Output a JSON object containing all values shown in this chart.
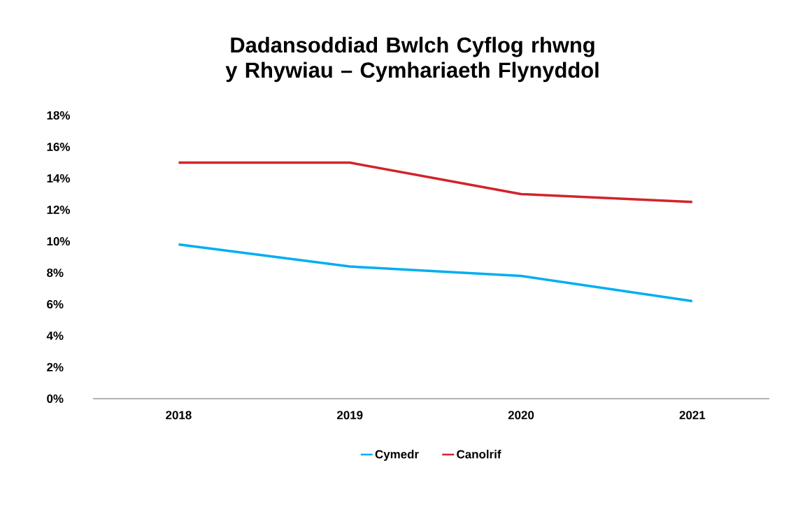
{
  "chart_data": {
    "type": "line",
    "title": "Dadansoddiad Bwlch Cyflog rhwng y Rhywiau – Cymhariaeth Flynyddol",
    "categories": [
      "2018",
      "2019",
      "2020",
      "2021"
    ],
    "series": [
      {
        "name": "Cymedr",
        "color": "#00aeef",
        "values": [
          9.8,
          8.4,
          7.8,
          6.2
        ]
      },
      {
        "name": "Canolrif",
        "color": "#d2232a",
        "values": [
          15,
          15,
          13,
          12.5
        ]
      }
    ],
    "ylim": [
      0,
      18
    ],
    "yticks": [
      {
        "value": 0,
        "label": "0%"
      },
      {
        "value": 2,
        "label": "2%"
      },
      {
        "value": 4,
        "label": "4%"
      },
      {
        "value": 6,
        "label": "6%"
      },
      {
        "value": 8,
        "label": "8%"
      },
      {
        "value": 10,
        "label": "10%"
      },
      {
        "value": 12,
        "label": "12%"
      },
      {
        "value": 14,
        "label": "14%"
      },
      {
        "value": 16,
        "label": "16%"
      },
      {
        "value": 18,
        "label": "18%"
      }
    ],
    "grid": false,
    "legend": "bottom",
    "marker": "none",
    "line_style": "solid"
  }
}
